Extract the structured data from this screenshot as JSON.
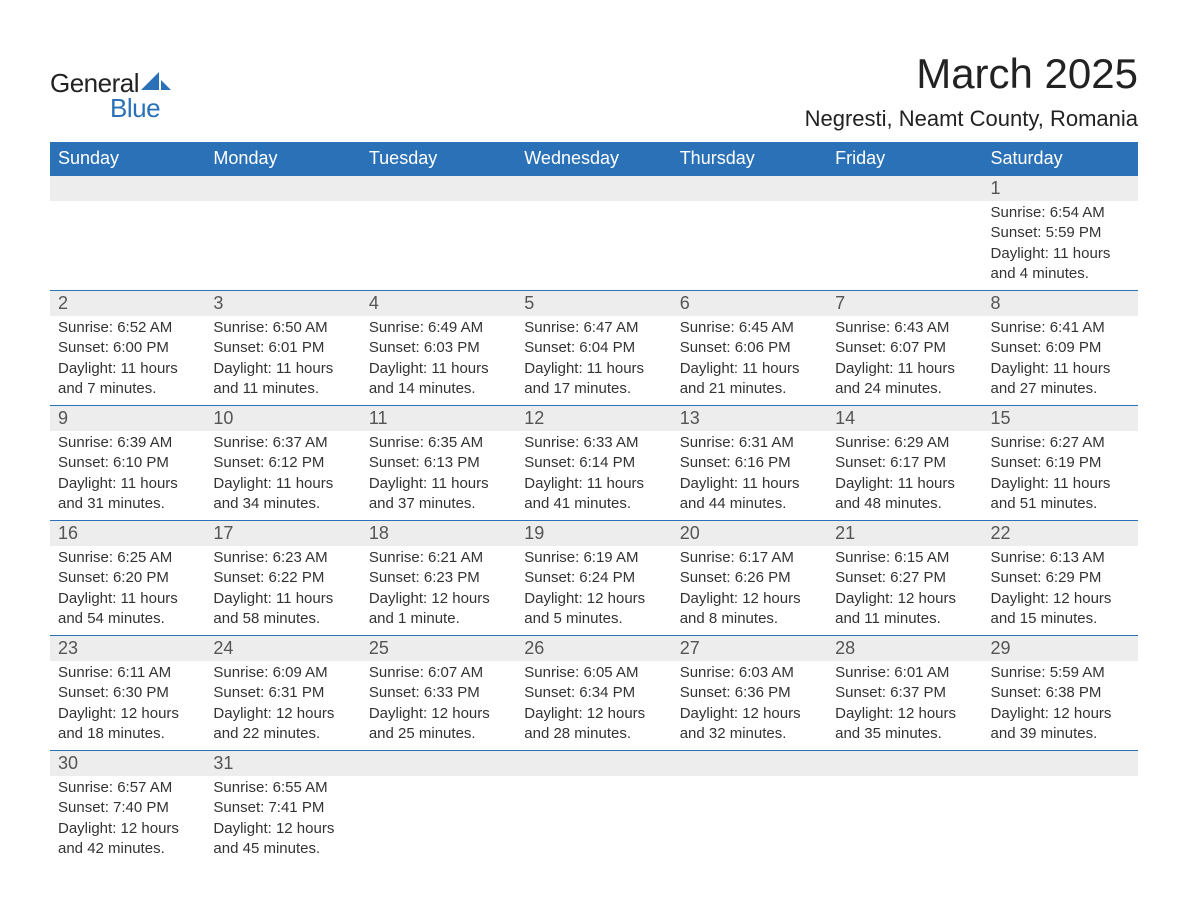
{
  "logo": {
    "text_general": "General",
    "text_blue": "Blue",
    "shape_color": "#2a71b8"
  },
  "header": {
    "month_title": "March 2025",
    "location": "Negresti, Neamt County, Romania"
  },
  "colors": {
    "header_bg": "#2a71b8",
    "header_text": "#ffffff",
    "daynum_bg": "#ededed",
    "row_divider": "#2a71b8",
    "body_text": "#333333",
    "page_bg": "#ffffff"
  },
  "typography": {
    "month_title_fontsize": 42,
    "location_fontsize": 22,
    "dayheader_fontsize": 18,
    "daynum_fontsize": 18,
    "cell_fontsize": 15
  },
  "day_headers": [
    "Sunday",
    "Monday",
    "Tuesday",
    "Wednesday",
    "Thursday",
    "Friday",
    "Saturday"
  ],
  "weeks": [
    [
      {
        "num": "",
        "lines": []
      },
      {
        "num": "",
        "lines": []
      },
      {
        "num": "",
        "lines": []
      },
      {
        "num": "",
        "lines": []
      },
      {
        "num": "",
        "lines": []
      },
      {
        "num": "",
        "lines": []
      },
      {
        "num": "1",
        "lines": [
          "Sunrise: 6:54 AM",
          "Sunset: 5:59 PM",
          "Daylight: 11 hours and 4 minutes."
        ]
      }
    ],
    [
      {
        "num": "2",
        "lines": [
          "Sunrise: 6:52 AM",
          "Sunset: 6:00 PM",
          "Daylight: 11 hours and 7 minutes."
        ]
      },
      {
        "num": "3",
        "lines": [
          "Sunrise: 6:50 AM",
          "Sunset: 6:01 PM",
          "Daylight: 11 hours and 11 minutes."
        ]
      },
      {
        "num": "4",
        "lines": [
          "Sunrise: 6:49 AM",
          "Sunset: 6:03 PM",
          "Daylight: 11 hours and 14 minutes."
        ]
      },
      {
        "num": "5",
        "lines": [
          "Sunrise: 6:47 AM",
          "Sunset: 6:04 PM",
          "Daylight: 11 hours and 17 minutes."
        ]
      },
      {
        "num": "6",
        "lines": [
          "Sunrise: 6:45 AM",
          "Sunset: 6:06 PM",
          "Daylight: 11 hours and 21 minutes."
        ]
      },
      {
        "num": "7",
        "lines": [
          "Sunrise: 6:43 AM",
          "Sunset: 6:07 PM",
          "Daylight: 11 hours and 24 minutes."
        ]
      },
      {
        "num": "8",
        "lines": [
          "Sunrise: 6:41 AM",
          "Sunset: 6:09 PM",
          "Daylight: 11 hours and 27 minutes."
        ]
      }
    ],
    [
      {
        "num": "9",
        "lines": [
          "Sunrise: 6:39 AM",
          "Sunset: 6:10 PM",
          "Daylight: 11 hours and 31 minutes."
        ]
      },
      {
        "num": "10",
        "lines": [
          "Sunrise: 6:37 AM",
          "Sunset: 6:12 PM",
          "Daylight: 11 hours and 34 minutes."
        ]
      },
      {
        "num": "11",
        "lines": [
          "Sunrise: 6:35 AM",
          "Sunset: 6:13 PM",
          "Daylight: 11 hours and 37 minutes."
        ]
      },
      {
        "num": "12",
        "lines": [
          "Sunrise: 6:33 AM",
          "Sunset: 6:14 PM",
          "Daylight: 11 hours and 41 minutes."
        ]
      },
      {
        "num": "13",
        "lines": [
          "Sunrise: 6:31 AM",
          "Sunset: 6:16 PM",
          "Daylight: 11 hours and 44 minutes."
        ]
      },
      {
        "num": "14",
        "lines": [
          "Sunrise: 6:29 AM",
          "Sunset: 6:17 PM",
          "Daylight: 11 hours and 48 minutes."
        ]
      },
      {
        "num": "15",
        "lines": [
          "Sunrise: 6:27 AM",
          "Sunset: 6:19 PM",
          "Daylight: 11 hours and 51 minutes."
        ]
      }
    ],
    [
      {
        "num": "16",
        "lines": [
          "Sunrise: 6:25 AM",
          "Sunset: 6:20 PM",
          "Daylight: 11 hours and 54 minutes."
        ]
      },
      {
        "num": "17",
        "lines": [
          "Sunrise: 6:23 AM",
          "Sunset: 6:22 PM",
          "Daylight: 11 hours and 58 minutes."
        ]
      },
      {
        "num": "18",
        "lines": [
          "Sunrise: 6:21 AM",
          "Sunset: 6:23 PM",
          "Daylight: 12 hours and 1 minute."
        ]
      },
      {
        "num": "19",
        "lines": [
          "Sunrise: 6:19 AM",
          "Sunset: 6:24 PM",
          "Daylight: 12 hours and 5 minutes."
        ]
      },
      {
        "num": "20",
        "lines": [
          "Sunrise: 6:17 AM",
          "Sunset: 6:26 PM",
          "Daylight: 12 hours and 8 minutes."
        ]
      },
      {
        "num": "21",
        "lines": [
          "Sunrise: 6:15 AM",
          "Sunset: 6:27 PM",
          "Daylight: 12 hours and 11 minutes."
        ]
      },
      {
        "num": "22",
        "lines": [
          "Sunrise: 6:13 AM",
          "Sunset: 6:29 PM",
          "Daylight: 12 hours and 15 minutes."
        ]
      }
    ],
    [
      {
        "num": "23",
        "lines": [
          "Sunrise: 6:11 AM",
          "Sunset: 6:30 PM",
          "Daylight: 12 hours and 18 minutes."
        ]
      },
      {
        "num": "24",
        "lines": [
          "Sunrise: 6:09 AM",
          "Sunset: 6:31 PM",
          "Daylight: 12 hours and 22 minutes."
        ]
      },
      {
        "num": "25",
        "lines": [
          "Sunrise: 6:07 AM",
          "Sunset: 6:33 PM",
          "Daylight: 12 hours and 25 minutes."
        ]
      },
      {
        "num": "26",
        "lines": [
          "Sunrise: 6:05 AM",
          "Sunset: 6:34 PM",
          "Daylight: 12 hours and 28 minutes."
        ]
      },
      {
        "num": "27",
        "lines": [
          "Sunrise: 6:03 AM",
          "Sunset: 6:36 PM",
          "Daylight: 12 hours and 32 minutes."
        ]
      },
      {
        "num": "28",
        "lines": [
          "Sunrise: 6:01 AM",
          "Sunset: 6:37 PM",
          "Daylight: 12 hours and 35 minutes."
        ]
      },
      {
        "num": "29",
        "lines": [
          "Sunrise: 5:59 AM",
          "Sunset: 6:38 PM",
          "Daylight: 12 hours and 39 minutes."
        ]
      }
    ],
    [
      {
        "num": "30",
        "lines": [
          "Sunrise: 6:57 AM",
          "Sunset: 7:40 PM",
          "Daylight: 12 hours and 42 minutes."
        ]
      },
      {
        "num": "31",
        "lines": [
          "Sunrise: 6:55 AM",
          "Sunset: 7:41 PM",
          "Daylight: 12 hours and 45 minutes."
        ]
      },
      {
        "num": "",
        "lines": []
      },
      {
        "num": "",
        "lines": []
      },
      {
        "num": "",
        "lines": []
      },
      {
        "num": "",
        "lines": []
      },
      {
        "num": "",
        "lines": []
      }
    ]
  ]
}
